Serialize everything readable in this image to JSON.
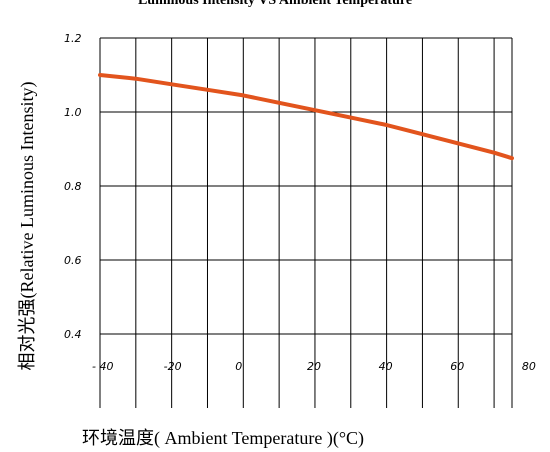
{
  "chart_data": {
    "type": "line",
    "title": "Luminous Intensity VS Ambient Temperature",
    "xlabel": "环境温度(  Ambient Temperature )(°C)",
    "ylabel": "相对光强(Relative Luminous Intensity)",
    "xlim": [
      -40,
      75
    ],
    "ylim": [
      0.2,
      1.2
    ],
    "x_ticks": [
      -40,
      -20,
      0,
      20,
      40,
      60,
      80
    ],
    "x_tick_labels": [
      "- 40",
      "-20",
      "0",
      "20",
      "40",
      "60",
      "80"
    ],
    "y_ticks": [
      0.4,
      0.6,
      0.8,
      1.0,
      1.2
    ],
    "y_tick_labels": [
      "0.4",
      "0.6",
      "0.8",
      "1.0",
      "1.2"
    ],
    "grid": true,
    "series": [
      {
        "color": "#e2541d",
        "x": [
          -40,
          -30,
          -20,
          -10,
          0,
          10,
          20,
          30,
          40,
          50,
          60,
          70,
          75
        ],
        "y": [
          1.1,
          1.09,
          1.075,
          1.06,
          1.045,
          1.025,
          1.005,
          0.985,
          0.965,
          0.94,
          0.915,
          0.89,
          0.875
        ]
      }
    ]
  }
}
